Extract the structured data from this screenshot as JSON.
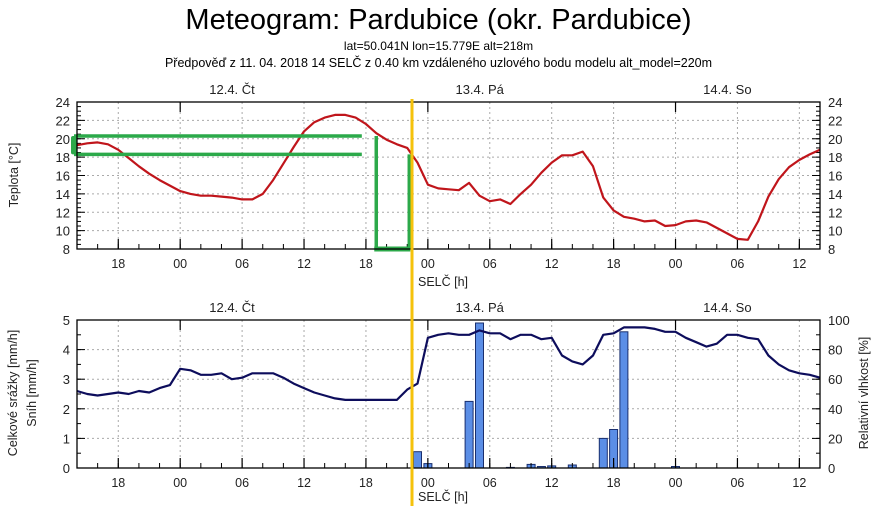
{
  "header": {
    "title": "Meteogram: Pardubice (okr. Pardubice)",
    "coords": "lat=50.041N lon=15.779E alt=218m",
    "forecast_info": "Předpověď z 11. 04. 2018 14 SELČ z 0.40 km vzdáleného uzlového bodu modelu alt_model=220m"
  },
  "colors": {
    "temperature": "#c0151b",
    "humidity": "#0d0d5c",
    "precip_fill": "#5b8ee6",
    "precip_stroke": "#1a2f6e",
    "marker_yellow": "#f5c20b",
    "annotation_green": "#2ca94a",
    "grid": "#aaaaaa"
  },
  "chart_data": [
    {
      "type": "line",
      "name": "temperature-panel",
      "ylabel": "Teplota [°C]",
      "xlabel": "SELČ [h]",
      "ylim": [
        8,
        24
      ],
      "yticks": [
        8,
        10,
        12,
        14,
        16,
        18,
        20,
        22,
        24
      ],
      "xlim_hours": [
        0,
        72
      ],
      "x_start": "11.4. 14:00",
      "xtick_labels": [
        "18",
        "00",
        "06",
        "12",
        "18",
        "00",
        "06",
        "12",
        "18",
        "00",
        "06",
        "12"
      ],
      "xtick_hours": [
        4,
        10,
        16,
        22,
        28,
        34,
        40,
        46,
        52,
        58,
        64,
        70
      ],
      "day_labels": [
        {
          "label": "12.4. Čt",
          "hour": 22
        },
        {
          "label": "13.4. Pá",
          "hour": 46
        },
        {
          "label": "14.4. So",
          "hour": 70
        }
      ],
      "grid": true,
      "series": [
        {
          "name": "Teplota",
          "x_hours": [
            0,
            1,
            2,
            3,
            4,
            5,
            6,
            7,
            8,
            9,
            10,
            11,
            12,
            13,
            14,
            15,
            16,
            17,
            18,
            19,
            20,
            21,
            22,
            23,
            24,
            25,
            26,
            27,
            28,
            29,
            30,
            31,
            32,
            33,
            34,
            35,
            36,
            37,
            38,
            39,
            40,
            41,
            42,
            43,
            44,
            45,
            46,
            47,
            48,
            49,
            50,
            51,
            52,
            53,
            54,
            55,
            56,
            57,
            58,
            59,
            60,
            61,
            62,
            63,
            64,
            65,
            66,
            67,
            68,
            69,
            70,
            71,
            72
          ],
          "values": [
            19.3,
            19.5,
            19.6,
            19.4,
            18.8,
            17.9,
            17.0,
            16.2,
            15.5,
            14.9,
            14.3,
            14.0,
            13.8,
            13.8,
            13.7,
            13.6,
            13.4,
            13.4,
            14.0,
            15.5,
            17.3,
            19.1,
            20.8,
            21.8,
            22.3,
            22.6,
            22.6,
            22.3,
            21.6,
            20.6,
            19.9,
            19.4,
            19.0,
            17.4,
            15.0,
            14.6,
            14.5,
            14.4,
            15.2,
            13.8,
            13.2,
            13.4,
            12.9,
            14.0,
            15.0,
            16.3,
            17.4,
            18.2,
            18.2,
            18.6,
            17.0,
            13.6,
            12.2,
            11.5,
            11.3,
            11.0,
            11.1,
            10.5,
            10.6,
            11.0,
            11.1,
            10.9,
            10.3,
            9.7,
            9.1,
            9.0,
            11.0,
            13.7,
            15.6,
            16.9,
            17.7,
            18.3,
            18.8
          ]
        }
      ],
      "annotations": {
        "band_upper": 20.3,
        "band_lower": 18.3,
        "band_end_hour": 27.6,
        "bracket_left_hour": 29.0,
        "bracket_right_hour": 32.2
      }
    },
    {
      "type": "bar+line",
      "name": "precip-humidity-panel",
      "ylabel_left": "Celkové srážky [mm/h]",
      "ylabel_left2": "Sníh [mm/h]",
      "ylabel_right": "Relativní vlhkost [%]",
      "xlabel": "SELČ [h]",
      "ylim_left": [
        0,
        5
      ],
      "ylim_right": [
        0,
        100
      ],
      "yticks_left": [
        0,
        1,
        2,
        3,
        4,
        5
      ],
      "yticks_right": [
        0,
        20,
        40,
        60,
        80,
        100
      ],
      "grid": true,
      "series": [
        {
          "name": "Celkové srážky",
          "type": "bar",
          "x_hours": [
            33,
            34,
            38,
            39,
            42,
            44,
            45,
            46,
            48,
            51,
            52,
            53,
            58
          ],
          "values": [
            0.55,
            0.15,
            2.25,
            4.9,
            0.02,
            0.12,
            0.05,
            0.07,
            0.1,
            1.0,
            1.3,
            4.6,
            0.05
          ]
        },
        {
          "name": "Relativní vlhkost",
          "type": "line",
          "x_hours": [
            0,
            1,
            2,
            3,
            4,
            5,
            6,
            7,
            8,
            9,
            10,
            11,
            12,
            13,
            14,
            15,
            16,
            17,
            18,
            19,
            20,
            21,
            22,
            23,
            24,
            25,
            26,
            27,
            28,
            29,
            30,
            31,
            32,
            33,
            34,
            35,
            36,
            37,
            38,
            39,
            40,
            41,
            42,
            43,
            44,
            45,
            46,
            47,
            48,
            49,
            50,
            51,
            52,
            53,
            54,
            55,
            56,
            57,
            58,
            59,
            60,
            61,
            62,
            63,
            64,
            65,
            66,
            67,
            68,
            69,
            70,
            71,
            72
          ],
          "values": [
            52,
            50,
            49,
            50,
            51,
            50,
            52,
            51,
            54,
            56,
            67,
            66,
            63,
            63,
            64,
            60,
            61,
            64,
            64,
            64,
            61,
            57,
            54,
            51,
            49,
            47,
            46,
            46,
            46,
            46,
            46,
            46,
            53,
            57,
            88,
            90,
            91,
            90,
            90,
            93,
            91,
            91,
            87,
            90,
            90,
            87,
            88,
            76,
            72,
            70,
            76,
            90,
            91,
            95,
            95,
            95,
            94,
            92,
            92,
            88,
            85,
            82,
            84,
            90,
            90,
            88,
            87,
            76,
            70,
            66,
            64,
            63,
            61
          ]
        }
      ]
    }
  ]
}
